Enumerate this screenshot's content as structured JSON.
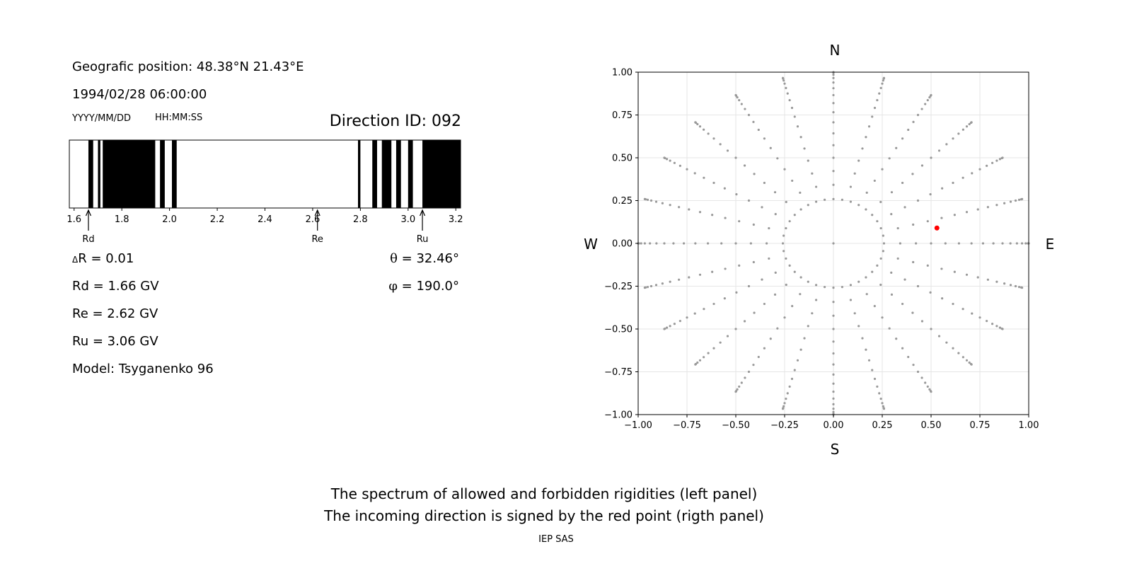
{
  "left_panel": {
    "position_text": "Geografic position: 48.38°N 21.43°E",
    "datetime_text": "1994/02/28 06:00:00",
    "date_format_label": "YYYY/MM/DD",
    "time_format_label": "HH:MM:SS",
    "direction_id_text": "Direction ID: 092",
    "delta_r_symbol": "Δ",
    "delta_r_text": "R = 0.01",
    "rd_text": "Rd = 1.66 GV",
    "re_text": "Re = 2.62 GV",
    "ru_text": "Ru = 3.06 GV",
    "model_text": "Model: Tsyganenko 96",
    "theta_symbol": "θ",
    "theta_text": "= 32.46°",
    "phi_symbol": "φ",
    "phi_text": "= 190.0°"
  },
  "compass": {
    "north": "N",
    "south": "S",
    "west": "W",
    "east": "E"
  },
  "caption": {
    "line1": "The spectrum of allowed and forbidden rigidities (left panel)",
    "line2": "The incoming direction is signed by the red point (rigth panel)",
    "credit": "IEP SAS"
  },
  "chart_data": [
    {
      "type": "bar",
      "subtype": "rigidity-spectrum",
      "xlim": [
        1.58,
        3.22
      ],
      "xticks": [
        1.6,
        1.8,
        2.0,
        2.2,
        2.4,
        2.6,
        2.8,
        3.0,
        3.2
      ],
      "xtick_labels": [
        "1.6",
        "1.8",
        "2.0",
        "2.2",
        "2.4",
        "2.6",
        "2.8",
        "3.0",
        "3.2"
      ],
      "forbidden_bands": [
        [
          1.66,
          1.68
        ],
        [
          1.7,
          1.71
        ],
        [
          1.72,
          1.94
        ],
        [
          1.96,
          1.98
        ],
        [
          2.01,
          2.03
        ],
        [
          2.79,
          2.8
        ],
        [
          2.85,
          2.87
        ],
        [
          2.89,
          2.93
        ],
        [
          2.95,
          2.97
        ],
        [
          3.0,
          3.02
        ],
        [
          3.06,
          3.22
        ]
      ],
      "markers": [
        {
          "label": "Rd",
          "value": 1.66
        },
        {
          "label": "Re",
          "value": 2.62
        },
        {
          "label": "Ru",
          "value": 3.06
        }
      ]
    },
    {
      "type": "scatter",
      "subtype": "direction-grid",
      "xlim": [
        -1.0,
        1.0
      ],
      "ylim": [
        -1.0,
        1.0
      ],
      "xticks": [
        "−1.00",
        "−0.75",
        "−0.50",
        "−0.25",
        "0.00",
        "0.25",
        "0.50",
        "0.75",
        "1.00"
      ],
      "yticks": [
        "1.00",
        "0.75",
        "0.50",
        "0.25",
        "0.00",
        "−0.25",
        "−0.50",
        "−0.75",
        "−1.00"
      ],
      "grid": true,
      "grid_point_color": "#999999",
      "zenith_step_deg": 5,
      "zenith_max_deg": 90,
      "azimuth_count": 24,
      "inner_ring_zenith_deg": 15,
      "inner_ring_points": 36,
      "selected_point": {
        "x": 0.53,
        "y": 0.09,
        "color": "#ff0000"
      }
    }
  ]
}
